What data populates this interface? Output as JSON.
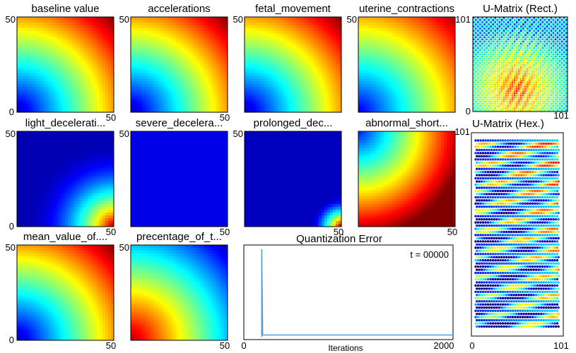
{
  "colors": {
    "jet": [
      "#00007f",
      "#0000ff",
      "#007fff",
      "#00ffff",
      "#7fff7f",
      "#ffff00",
      "#ff7f00",
      "#ff0000",
      "#7f0000"
    ]
  },
  "component_planes": [
    {
      "title": "baseline value",
      "style": "high",
      "ymax": "50",
      "ymin": "0",
      "xmax": "50"
    },
    {
      "title": "accelerations",
      "style": "high",
      "ymax": "50",
      "ymin": "",
      "xmax": "50"
    },
    {
      "title": "fetal_movement",
      "style": "high",
      "ymax": "50",
      "ymin": "",
      "xmax": ""
    },
    {
      "title": "uterine_contractions",
      "style": "mid",
      "ymax": "50",
      "ymin": "",
      "xmax": ""
    },
    {
      "title": "light_decelerati...",
      "style": "low",
      "ymax": "50",
      "ymin": "0",
      "xmax": "50"
    },
    {
      "title": "severe_decelera...",
      "style": "flat",
      "ymax": "50",
      "ymin": "",
      "xmax": "50"
    },
    {
      "title": "prolonged_dec...",
      "style": "vlow",
      "ymax": "50",
      "ymin": "",
      "xmax": "50"
    },
    {
      "title": "abnormal_short...",
      "style": "abn",
      "ymax": "",
      "ymin": "",
      "xmax": "50"
    },
    {
      "title": "mean_value_of....",
      "style": "high",
      "ymax": "50",
      "ymin": "0",
      "xmax": "50"
    },
    {
      "title": "precentage_of_t...",
      "style": "pct",
      "ymax": "50",
      "ymin": "",
      "xmax": "50"
    }
  ],
  "umatrix_rect": {
    "title": "U-Matrix (Rect.)",
    "ymax": "101",
    "ymin": "0",
    "xmax": "101"
  },
  "umatrix_hex": {
    "title": "U-Matrix (Hex.)",
    "ymax": "101",
    "ymin": "0",
    "xmax": "101"
  },
  "chart_data": {
    "type": "line",
    "title": "Quantization Error",
    "xlabel": "Iterations",
    "ylabel": "",
    "xlim": [
      0,
      2000
    ],
    "x": [
      0,
      80,
      80,
      90,
      2000
    ],
    "y": [
      0,
      0,
      1.0,
      0.02,
      0.02
    ],
    "annotation": "t  =  00000",
    "series_color": "#5b9bd5",
    "tick_labels": {
      "x_start": "0",
      "x_end": "2000"
    }
  }
}
